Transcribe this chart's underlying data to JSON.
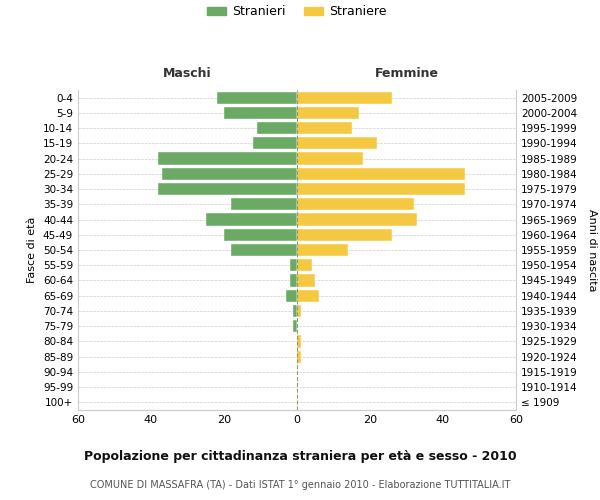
{
  "age_groups": [
    "100+",
    "95-99",
    "90-94",
    "85-89",
    "80-84",
    "75-79",
    "70-74",
    "65-69",
    "60-64",
    "55-59",
    "50-54",
    "45-49",
    "40-44",
    "35-39",
    "30-34",
    "25-29",
    "20-24",
    "15-19",
    "10-14",
    "5-9",
    "0-4"
  ],
  "birth_years": [
    "≤ 1909",
    "1910-1914",
    "1915-1919",
    "1920-1924",
    "1925-1929",
    "1930-1934",
    "1935-1939",
    "1940-1944",
    "1945-1949",
    "1950-1954",
    "1955-1959",
    "1960-1964",
    "1965-1969",
    "1970-1974",
    "1975-1979",
    "1980-1984",
    "1985-1989",
    "1990-1994",
    "1995-1999",
    "2000-2004",
    "2005-2009"
  ],
  "males": [
    0,
    0,
    0,
    0,
    0,
    1,
    1,
    3,
    2,
    2,
    18,
    20,
    25,
    18,
    38,
    37,
    38,
    12,
    11,
    20,
    22
  ],
  "females": [
    0,
    0,
    0,
    1,
    1,
    0,
    1,
    6,
    5,
    4,
    14,
    26,
    33,
    32,
    46,
    46,
    18,
    22,
    15,
    17,
    26
  ],
  "male_color": "#6aaa64",
  "female_color": "#f5c842",
  "background_color": "#ffffff",
  "grid_color": "#cccccc",
  "title": "Popolazione per cittadinanza straniera per età e sesso - 2010",
  "subtitle": "COMUNE DI MASSAFRA (TA) - Dati ISTAT 1° gennaio 2010 - Elaborazione TUTTITALIA.IT",
  "xlabel_left": "Maschi",
  "xlabel_right": "Femmine",
  "ylabel_left": "Fasce di età",
  "ylabel_right": "Anni di nascita",
  "legend_male": "Stranieri",
  "legend_female": "Straniere",
  "xlim": 60,
  "xticks": [
    -60,
    -40,
    -20,
    0,
    20,
    40,
    60
  ],
  "xtick_labels": [
    "60",
    "40",
    "20",
    "0",
    "20",
    "40",
    "60"
  ]
}
